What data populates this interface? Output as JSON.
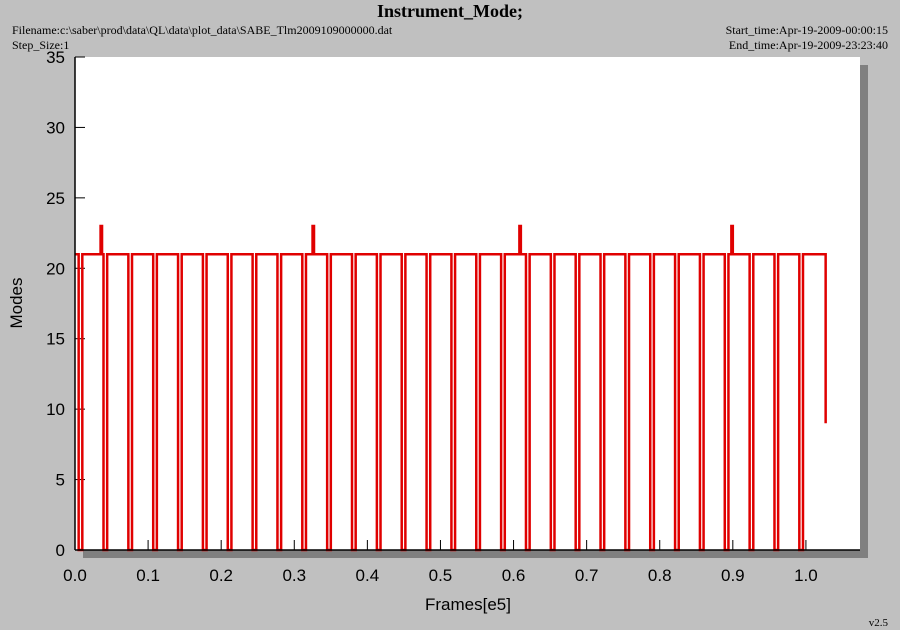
{
  "chart_data": {
    "type": "line",
    "title": "Instrument_Mode;",
    "filename": "Filename:c:\\saber\\prod\\data\\QL\\data\\plot_data\\SABE_Tlm2009109000000.dat",
    "step_size": "Step_Size:1",
    "start_time": "Start_time:Apr-19-2009-00:00:15",
    "end_time": "End_time:Apr-19-2009-23:23:40",
    "version": "v2.5",
    "x_label": "Frames[e5]",
    "y_label": "Modes",
    "xlim": [
      0,
      1.074
    ],
    "ylim": [
      0,
      35
    ],
    "xticks": [
      {
        "value": 0,
        "label": "0.0"
      },
      0.1,
      0.2,
      0.3,
      0.4,
      0.5,
      0.6,
      0.7,
      0.8,
      0.9,
      {
        "value": 1,
        "label": "1.0"
      }
    ],
    "yticks": [
      0,
      5,
      10,
      15,
      20,
      25,
      30,
      35
    ],
    "series": [
      {
        "color": "#e00000",
        "x": [
          0,
          0.005,
          0.005,
          0.01,
          0.01,
          0.035,
          0.035,
          0.037,
          0.037,
          0.039,
          0.039,
          0.044,
          0.044,
          0.073,
          0.073,
          0.078,
          0.078,
          0.107,
          0.107,
          0.112,
          0.112,
          0.141,
          0.141,
          0.146,
          0.146,
          0.175,
          0.175,
          0.18,
          0.18,
          0.209,
          0.209,
          0.214,
          0.214,
          0.243,
          0.243,
          0.248,
          0.248,
          0.277,
          0.277,
          0.282,
          0.282,
          0.311,
          0.311,
          0.316,
          0.316,
          0.325,
          0.325,
          0.327,
          0.327,
          0.345,
          0.345,
          0.35,
          0.35,
          0.379,
          0.379,
          0.384,
          0.384,
          0.413,
          0.413,
          0.418,
          0.418,
          0.447,
          0.447,
          0.452,
          0.452,
          0.481,
          0.481,
          0.486,
          0.486,
          0.515,
          0.515,
          0.52,
          0.52,
          0.549,
          0.549,
          0.554,
          0.554,
          0.583,
          0.583,
          0.588,
          0.588,
          0.608,
          0.608,
          0.61,
          0.61,
          0.617,
          0.617,
          0.622,
          0.622,
          0.651,
          0.651,
          0.656,
          0.656,
          0.685,
          0.685,
          0.69,
          0.69,
          0.719,
          0.719,
          0.724,
          0.724,
          0.753,
          0.753,
          0.758,
          0.758,
          0.787,
          0.787,
          0.792,
          0.792,
          0.821,
          0.821,
          0.826,
          0.826,
          0.855,
          0.855,
          0.86,
          0.86,
          0.889,
          0.889,
          0.894,
          0.894,
          0.898,
          0.898,
          0.9,
          0.9,
          0.923,
          0.923,
          0.928,
          0.928,
          0.957,
          0.957,
          0.962,
          0.962,
          0.991,
          0.991,
          0.996,
          0.996,
          1.027,
          1.027
        ],
        "values": [
          21,
          21,
          0,
          0,
          21,
          21,
          23,
          23,
          21,
          21,
          0,
          0,
          21,
          21,
          0,
          0,
          21,
          21,
          0,
          0,
          21,
          21,
          0,
          0,
          21,
          21,
          0,
          0,
          21,
          21,
          0,
          0,
          21,
          21,
          0,
          0,
          21,
          21,
          0,
          0,
          21,
          21,
          0,
          0,
          21,
          21,
          23,
          23,
          21,
          21,
          0,
          0,
          21,
          21,
          0,
          0,
          21,
          21,
          0,
          0,
          21,
          21,
          0,
          0,
          21,
          21,
          0,
          0,
          21,
          21,
          0,
          0,
          21,
          21,
          0,
          0,
          21,
          21,
          0,
          0,
          21,
          21,
          23,
          23,
          21,
          21,
          0,
          0,
          21,
          21,
          0,
          0,
          21,
          21,
          0,
          0,
          21,
          21,
          0,
          0,
          21,
          21,
          0,
          0,
          21,
          21,
          0,
          0,
          21,
          21,
          0,
          0,
          21,
          21,
          0,
          0,
          21,
          21,
          0,
          0,
          21,
          21,
          23,
          23,
          21,
          21,
          0,
          0,
          21,
          21,
          0,
          0,
          21,
          21,
          0,
          0,
          21,
          21,
          9
        ]
      }
    ]
  }
}
